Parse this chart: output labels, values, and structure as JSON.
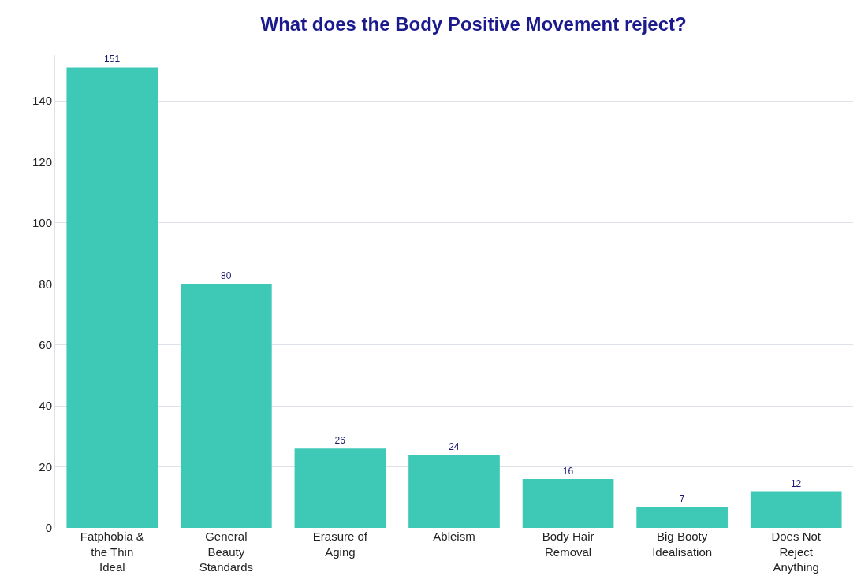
{
  "chart_data": {
    "type": "bar",
    "title": "What does the Body Positive Movement reject?",
    "categories": [
      "Fatphobia & the Thin Ideal",
      "General Beauty Standards",
      "Erasure of Aging",
      "Ableism",
      "Body Hair Removal",
      "Big Booty Idealisation",
      "Does Not Reject Anything"
    ],
    "values": [
      151,
      80,
      26,
      24,
      16,
      7,
      12
    ],
    "color": "#3ec9b6",
    "ylim": [
      0,
      155
    ],
    "yticks": [
      0,
      20,
      40,
      60,
      80,
      100,
      120,
      140
    ],
    "grid": "y",
    "data_labels": true
  }
}
